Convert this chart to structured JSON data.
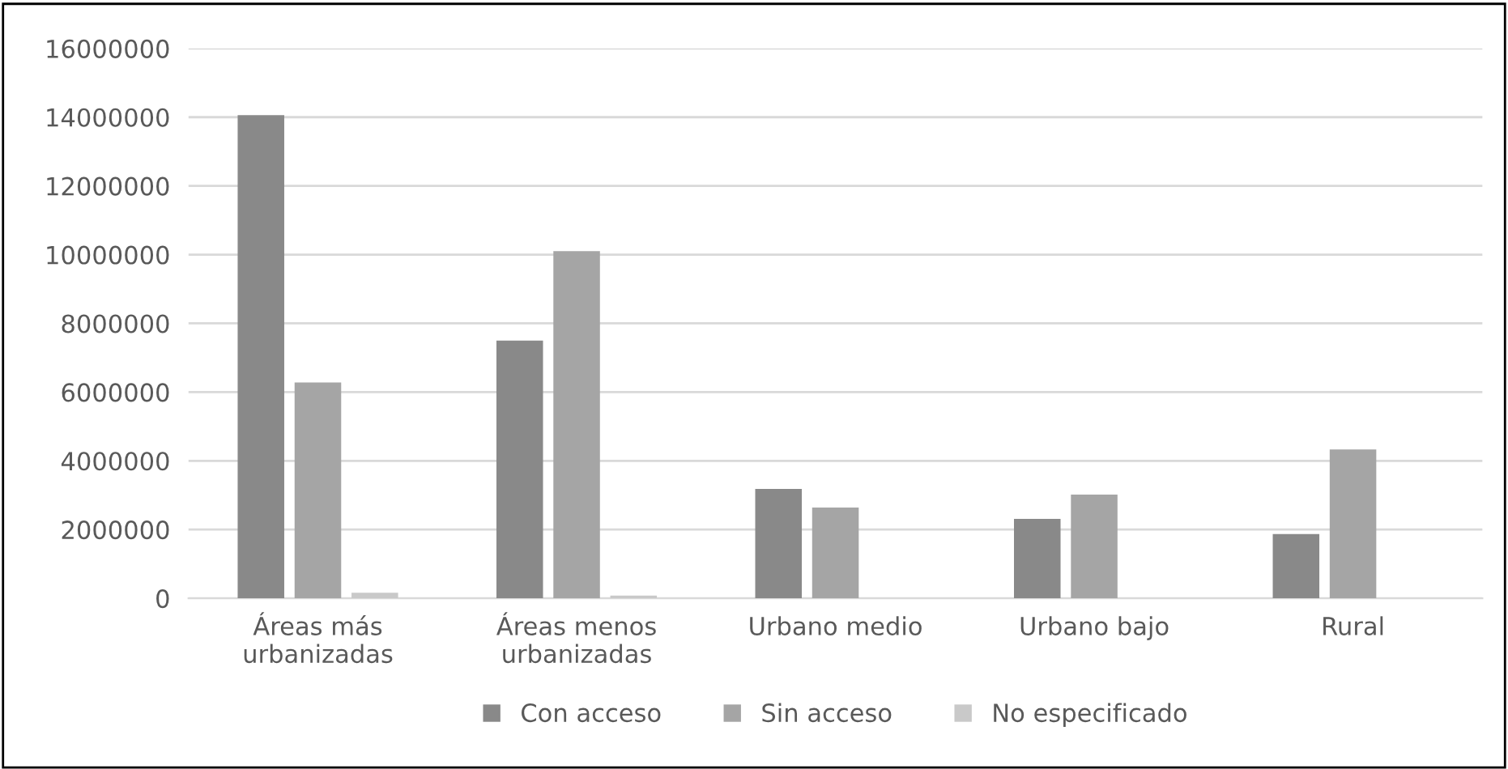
{
  "chart_data": {
    "type": "bar",
    "categories": [
      "Áreas más\nurbanizadas",
      "Áreas menos\nurbanizadas",
      "Urbano medio",
      "Urbano bajo",
      "Rural"
    ],
    "series": [
      {
        "name": "Con acceso",
        "color": "#898989",
        "values": [
          14060000,
          7500000,
          3180000,
          2310000,
          1870000
        ]
      },
      {
        "name": "Sin acceso",
        "color": "#a5a5a5",
        "values": [
          6280000,
          10100000,
          2640000,
          3020000,
          4330000
        ]
      },
      {
        "name": "No especificado",
        "color": "#c9c9c9",
        "values": [
          160000,
          80000,
          0,
          0,
          0
        ]
      }
    ],
    "ylim": [
      0,
      16000000
    ],
    "yticks": [
      0,
      2000000,
      4000000,
      6000000,
      8000000,
      10000000,
      12000000,
      14000000,
      16000000
    ],
    "grid": "y",
    "legend": "bottom"
  }
}
